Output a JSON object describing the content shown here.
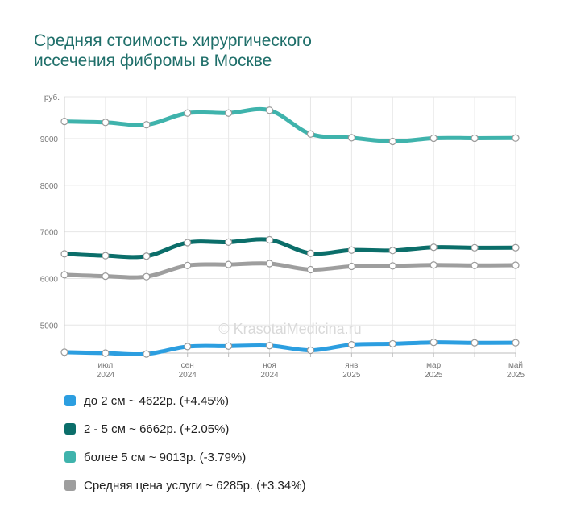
{
  "title": "Средняя стоимость хирургического иссечения фибромы в Москве",
  "watermark": "© KrasotaiMedicina.ru",
  "chart_data": {
    "type": "line",
    "title": "Средняя стоимость хирургического иссечения фибромы в Москве",
    "ylabel": "руб.",
    "xlabel": "",
    "ylim": [
      4400,
      9900
    ],
    "yticks": [
      5000,
      6000,
      7000,
      8000,
      9000
    ],
    "x": [
      "2024-06",
      "2024-07",
      "2024-08",
      "2024-09",
      "2024-10",
      "2024-11",
      "2024-12",
      "2025-01",
      "2025-02",
      "2025-03",
      "2025-04",
      "2025-05"
    ],
    "x_tick_labels": [
      {
        "index": 1,
        "month": "июл",
        "year": "2024"
      },
      {
        "index": 3,
        "month": "сен",
        "year": "2024"
      },
      {
        "index": 5,
        "month": "ноя",
        "year": "2024"
      },
      {
        "index": 7,
        "month": "янв",
        "year": "2025"
      },
      {
        "index": 9,
        "month": "мар",
        "year": "2025"
      },
      {
        "index": 11,
        "month": "май",
        "year": "2025"
      }
    ],
    "grid": true,
    "legend_position": "bottom",
    "series": [
      {
        "name": "более 5 см",
        "color": "#3fb3ac",
        "values": [
          9370,
          9350,
          9300,
          9550,
          9550,
          9610,
          9100,
          9020,
          8940,
          9010,
          9010,
          9013
        ]
      },
      {
        "name": "2 - 5 см",
        "color": "#0b6e6a",
        "values": [
          6530,
          6490,
          6480,
          6770,
          6780,
          6830,
          6540,
          6610,
          6600,
          6670,
          6660,
          6662
        ]
      },
      {
        "name": "Средняя цена услуги",
        "color": "#9e9e9e",
        "values": [
          6080,
          6050,
          6040,
          6280,
          6300,
          6320,
          6190,
          6260,
          6270,
          6290,
          6280,
          6285
        ]
      },
      {
        "name": "до 2 см",
        "color": "#2c9ee0",
        "values": [
          4420,
          4400,
          4380,
          4540,
          4550,
          4560,
          4460,
          4580,
          4600,
          4630,
          4620,
          4622
        ]
      }
    ]
  },
  "legend": [
    {
      "text": "до 2 см ~ 4622р. (+4.45%)",
      "color": "#2c9ee0"
    },
    {
      "text": "2 - 5 см ~ 6662р. (+2.05%)",
      "color": "#0b6e6a"
    },
    {
      "text": "более 5 см ~ 9013р. (-3.79%)",
      "color": "#3fb3ac"
    },
    {
      "text": "Средняя цена услуги ~ 6285р. (+3.34%)",
      "color": "#9e9e9e"
    }
  ]
}
